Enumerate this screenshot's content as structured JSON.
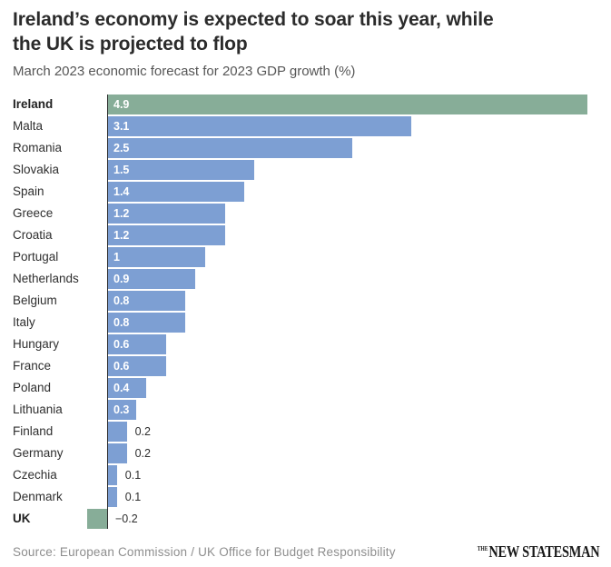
{
  "header": {
    "title_line1": "Ireland’s economy is expected to soar this year, while",
    "title_line2": "the UK is projected to flop",
    "subtitle": "March 2023 economic forecast for 2023 GDP growth (%)"
  },
  "chart_data": {
    "type": "bar",
    "orientation": "horizontal",
    "title": "Ireland’s economy is expected to soar this year, while the UK is projected to flop",
    "subtitle": "March 2023 economic forecast for 2023 GDP growth (%)",
    "categories": [
      "Ireland",
      "Malta",
      "Romania",
      "Slovakia",
      "Spain",
      "Greece",
      "Croatia",
      "Portugal",
      "Netherlands",
      "Belgium",
      "Italy",
      "Hungary",
      "France",
      "Poland",
      "Lithuania",
      "Finland",
      "Germany",
      "Czechia",
      "Denmark",
      "UK"
    ],
    "values": [
      4.9,
      3.1,
      2.5,
      1.5,
      1.4,
      1.2,
      1.2,
      1.0,
      0.9,
      0.8,
      0.8,
      0.6,
      0.6,
      0.4,
      0.3,
      0.2,
      0.2,
      0.1,
      0.1,
      -0.2
    ],
    "value_labels": [
      "4.9",
      "3.1",
      "2.5",
      "1.5",
      "1.4",
      "1.2",
      "1.2",
      "1",
      "0.9",
      "0.8",
      "0.8",
      "0.6",
      "0.6",
      "0.4",
      "0.3",
      "0.2",
      "0.2",
      "0.1",
      "0.1",
      "−0.2"
    ],
    "xlim": [
      -0.2,
      4.9
    ],
    "grid": false,
    "legend": false,
    "highlight_categories": [
      "Ireland",
      "UK"
    ],
    "colors": {
      "bar_default": "#7d9fd3",
      "bar_highlight": "#87ad98",
      "axis": "#2a2a2a",
      "value_inside": "#ffffff",
      "value_outside": "#2e2e2e"
    },
    "value_label_inside_threshold": 0.3
  },
  "footer": {
    "source": "Source: European Commission / UK Office for Budget Responsibility",
    "logo_the": "THE",
    "logo_name": "NEW STATESMAN"
  }
}
